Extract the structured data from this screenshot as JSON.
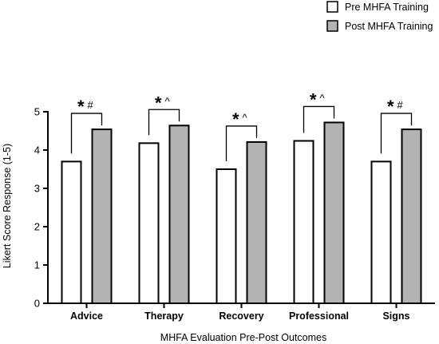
{
  "chart_data": {
    "type": "bar",
    "categories": [
      "Advice",
      "Therapy",
      "Recovery",
      "Professional",
      "Signs"
    ],
    "series": [
      {
        "name": "Pre MHFA Training",
        "values": [
          3.7,
          4.18,
          3.5,
          4.24,
          3.7
        ],
        "color": "#ffffff"
      },
      {
        "name": "Post MHFA Training",
        "values": [
          4.54,
          4.64,
          4.21,
          4.72,
          4.54
        ],
        "color": "#b3b3b3"
      }
    ],
    "significance": [
      {
        "star": "*",
        "mark": "#"
      },
      {
        "star": "*",
        "mark": "^"
      },
      {
        "star": "*",
        "mark": "^"
      },
      {
        "star": "*",
        "mark": "^"
      },
      {
        "star": "*",
        "mark": "#"
      }
    ],
    "xlabel": "MHFA Evaluation Pre-Post Outcomes",
    "ylabel": "Likert Score Response (1-5)",
    "ylim": [
      0,
      5
    ],
    "yticks": [
      "0",
      "1",
      "2",
      "3",
      "4",
      "5"
    ],
    "grid": false,
    "legend_position": "top-right"
  }
}
